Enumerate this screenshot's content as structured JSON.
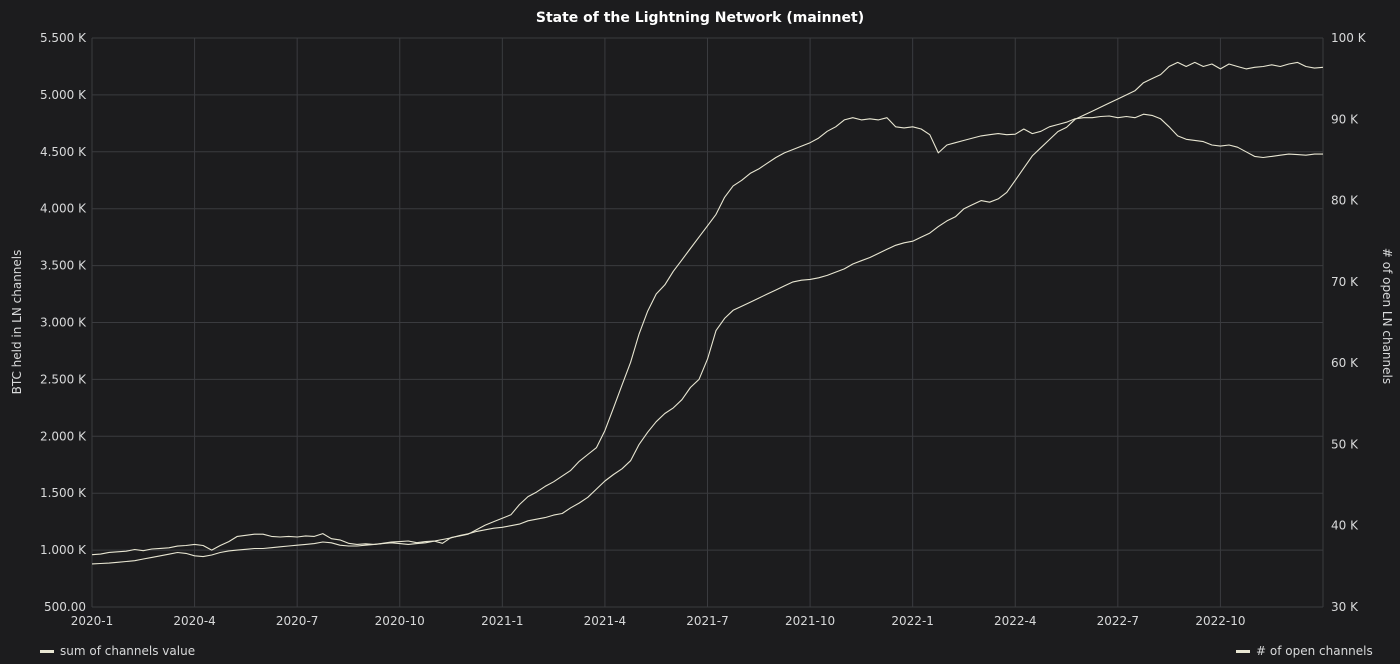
{
  "chart_data": {
    "type": "line",
    "title": "State of the Lightning Network (mainnet)",
    "y_left_label": "BTC held in LN channels",
    "y_right_label": "# of open LN channels",
    "x_ticks": [
      "2020-1",
      "2020-4",
      "2020-7",
      "2020-10",
      "2021-1",
      "2021-4",
      "2021-7",
      "2021-10",
      "2022-1",
      "2022-4",
      "2022-7",
      "2022-10"
    ],
    "y_left_ticks": [
      "500.00",
      "1.000 K",
      "1.500 K",
      "2.000 K",
      "2.500 K",
      "3.000 K",
      "3.500 K",
      "4.000 K",
      "4.500 K",
      "5.000 K",
      "5.500 K"
    ],
    "y_left_range": [
      500,
      5500
    ],
    "y_right_ticks": [
      "30 K",
      "40 K",
      "50 K",
      "60 K",
      "70 K",
      "80 K",
      "90 K",
      "100 K"
    ],
    "y_right_range": [
      30000,
      100000
    ],
    "grid": true,
    "legend_placement": "bottom",
    "line_color": "#e8e6d2",
    "series": [
      {
        "name": "sum of channels value",
        "axis": "left",
        "x": [
          0,
          0.25,
          0.5,
          0.75,
          1.0,
          1.25,
          1.5,
          1.75,
          2.0,
          2.25,
          2.5,
          2.75,
          3.0,
          3.25,
          3.5,
          3.75,
          4.0,
          4.25,
          4.5,
          4.75,
          5.0,
          5.25,
          5.5,
          5.75,
          6.0,
          6.25,
          6.5,
          6.75,
          7.0,
          7.25,
          7.5,
          7.75,
          8.0,
          8.25,
          8.5,
          8.75,
          9.0,
          9.25,
          9.5,
          9.75,
          10.0,
          10.25,
          10.5,
          10.75,
          11.0,
          11.25,
          11.5,
          11.75,
          12.0,
          12.25,
          12.5,
          12.75,
          13.0,
          13.25,
          13.5,
          13.75,
          14.0,
          14.25,
          14.5,
          14.75,
          15.0,
          15.25,
          15.5,
          15.75,
          16.0,
          16.25,
          16.5,
          16.75,
          17.0,
          17.25,
          17.5,
          17.75,
          18.0,
          18.25,
          18.5,
          18.75,
          19.0,
          19.25,
          19.5,
          19.75,
          20.0,
          20.25,
          20.5,
          20.75,
          21.0,
          21.25,
          21.5,
          21.75,
          22.0,
          22.25,
          22.5,
          22.75,
          23.0,
          23.25,
          23.5,
          23.75,
          24.0,
          24.25,
          24.5,
          24.75,
          25.0,
          25.25,
          25.5,
          25.75,
          26.0,
          26.25,
          26.5,
          26.75,
          27.0,
          27.25,
          27.5,
          27.75,
          28.0,
          28.25,
          28.5,
          28.75,
          29.0,
          29.25,
          29.5,
          29.75,
          30.0,
          30.25,
          30.5,
          30.75,
          31.0,
          31.25,
          31.5,
          31.75,
          32.0,
          32.25,
          32.5,
          32.75,
          33.0,
          33.25,
          33.5,
          33.75,
          34.0,
          34.25,
          34.5,
          34.75,
          35.0,
          35.25,
          35.5,
          35.75,
          36.0
        ],
        "values": [
          960,
          965,
          980,
          985,
          990,
          1005,
          995,
          1010,
          1015,
          1020,
          1035,
          1040,
          1050,
          1040,
          1000,
          1040,
          1075,
          1120,
          1130,
          1140,
          1140,
          1120,
          1115,
          1120,
          1115,
          1125,
          1120,
          1145,
          1100,
          1090,
          1060,
          1050,
          1055,
          1050,
          1060,
          1070,
          1075,
          1080,
          1065,
          1075,
          1080,
          1060,
          1110,
          1125,
          1140,
          1180,
          1220,
          1250,
          1280,
          1310,
          1400,
          1470,
          1510,
          1560,
          1600,
          1650,
          1700,
          1780,
          1840,
          1900,
          2050,
          2250,
          2450,
          2650,
          2900,
          3100,
          3250,
          3330,
          3450,
          3550,
          3650,
          3750,
          3850,
          3950,
          4100,
          4200,
          4250,
          4310,
          4350,
          4400,
          4450,
          4490,
          4520,
          4550,
          4580,
          4620,
          4680,
          4720,
          4780,
          4800,
          4780,
          4790,
          4780,
          4800,
          4720,
          4710,
          4720,
          4700,
          4650,
          4490,
          4560,
          4580,
          4600,
          4620,
          4640,
          4650,
          4660,
          4650,
          4655,
          4700,
          4660,
          4680,
          4720,
          4740,
          4760,
          4790,
          4800,
          4800,
          4810,
          4815,
          4800,
          4810,
          4800,
          4830,
          4820,
          4790,
          4720,
          4640,
          4610,
          4600,
          4590,
          4560,
          4550,
          4560,
          4540,
          4500,
          4460,
          4450,
          4460,
          4470,
          4480,
          4475,
          4470,
          4480,
          4480
        ]
      },
      {
        "name": "# of open channels",
        "axis": "right",
        "x": [
          0,
          0.25,
          0.5,
          0.75,
          1.0,
          1.25,
          1.5,
          1.75,
          2.0,
          2.25,
          2.5,
          2.75,
          3.0,
          3.25,
          3.5,
          3.75,
          4.0,
          4.25,
          4.5,
          4.75,
          5.0,
          5.25,
          5.5,
          5.75,
          6.0,
          6.25,
          6.5,
          6.75,
          7.0,
          7.25,
          7.5,
          7.75,
          8.0,
          8.25,
          8.5,
          8.75,
          9.0,
          9.25,
          9.5,
          9.75,
          10.0,
          10.25,
          10.5,
          10.75,
          11.0,
          11.25,
          11.5,
          11.75,
          12.0,
          12.25,
          12.5,
          12.75,
          13.0,
          13.25,
          13.5,
          13.75,
          14.0,
          14.25,
          14.5,
          14.75,
          15.0,
          15.25,
          15.5,
          15.75,
          16.0,
          16.25,
          16.5,
          16.75,
          17.0,
          17.25,
          17.5,
          17.75,
          18.0,
          18.25,
          18.5,
          18.75,
          19.0,
          19.25,
          19.5,
          19.75,
          20.0,
          20.25,
          20.5,
          20.75,
          21.0,
          21.25,
          21.5,
          21.75,
          22.0,
          22.25,
          22.5,
          22.75,
          23.0,
          23.25,
          23.5,
          23.75,
          24.0,
          24.25,
          24.5,
          24.75,
          25.0,
          25.25,
          25.5,
          25.75,
          26.0,
          26.25,
          26.5,
          26.75,
          27.0,
          27.25,
          27.5,
          27.75,
          28.0,
          28.25,
          28.5,
          28.75,
          29.0,
          29.25,
          29.5,
          29.75,
          30.0,
          30.25,
          30.5,
          30.75,
          31.0,
          31.25,
          31.5,
          31.75,
          32.0,
          32.25,
          32.5,
          32.75,
          33.0,
          33.25,
          33.5,
          33.75,
          34.0,
          34.25,
          34.5,
          34.75,
          35.0,
          35.25,
          35.5,
          35.75,
          36.0
        ],
        "values": [
          35300,
          35350,
          35400,
          35500,
          35600,
          35700,
          35900,
          36100,
          36300,
          36500,
          36700,
          36600,
          36300,
          36200,
          36400,
          36700,
          36900,
          37000,
          37100,
          37200,
          37200,
          37300,
          37400,
          37500,
          37600,
          37700,
          37800,
          38000,
          37900,
          37600,
          37500,
          37500,
          37600,
          37700,
          37800,
          37900,
          37800,
          37700,
          37800,
          37900,
          38100,
          38300,
          38500,
          38800,
          39000,
          39300,
          39500,
          39700,
          39800,
          40000,
          40200,
          40600,
          40800,
          41000,
          41300,
          41500,
          42200,
          42800,
          43500,
          44500,
          45500,
          46300,
          47000,
          48000,
          50000,
          51500,
          52800,
          53800,
          54500,
          55500,
          57000,
          58000,
          60500,
          64000,
          65500,
          66500,
          67000,
          67500,
          68000,
          68500,
          69000,
          69500,
          70000,
          70200,
          70300,
          70500,
          70800,
          71200,
          71600,
          72200,
          72600,
          73000,
          73500,
          74000,
          74500,
          74800,
          75000,
          75500,
          76000,
          76800,
          77500,
          78000,
          79000,
          79500,
          80000,
          79800,
          80200,
          81000,
          82500,
          84000,
          85500,
          86500,
          87500,
          88500,
          89000,
          90000,
          90500,
          91000,
          91500,
          92000,
          92500,
          93000,
          93500,
          94500,
          95000,
          95500,
          96500,
          97000,
          96500,
          97000,
          96500,
          96800,
          96200,
          96800,
          96500,
          96200,
          96400,
          96500,
          96700,
          96500,
          96800,
          97000,
          96500,
          96300,
          96400
        ]
      }
    ]
  },
  "legend": {
    "left_label": "sum of channels value",
    "right_label": "# of open channels"
  }
}
